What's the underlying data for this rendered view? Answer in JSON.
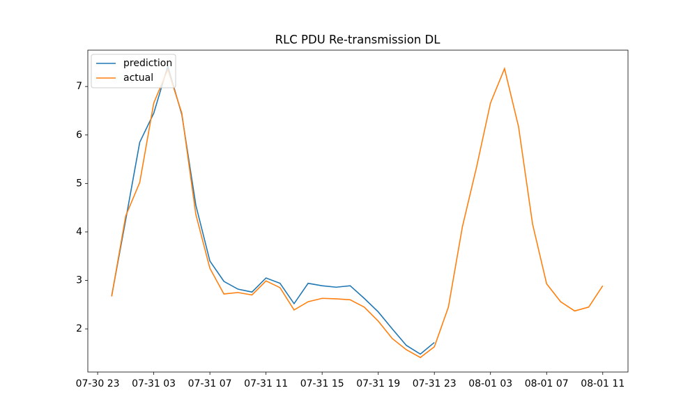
{
  "chart_data": {
    "type": "line",
    "title": "RLC PDU Re-transmission DL",
    "x": [
      "07-31 00",
      "07-31 01",
      "07-31 02",
      "07-31 03",
      "07-31 04",
      "07-31 05",
      "07-31 06",
      "07-31 07",
      "07-31 08",
      "07-31 09",
      "07-31 10",
      "07-31 11",
      "07-31 12",
      "07-31 13",
      "07-31 14",
      "07-31 15",
      "07-31 16",
      "07-31 17",
      "07-31 18",
      "07-31 19",
      "07-31 20",
      "07-31 21",
      "07-31 22",
      "07-31 23",
      "08-01 00",
      "08-01 01",
      "08-01 02",
      "08-01 03",
      "08-01 04",
      "08-01 05",
      "08-01 06",
      "08-01 07",
      "08-01 08",
      "08-01 09",
      "08-01 10",
      "08-01 11"
    ],
    "series": [
      {
        "name": "prediction",
        "color": "#1f77b4",
        "values": [
          2.68,
          4.25,
          5.85,
          6.45,
          7.42,
          6.42,
          4.55,
          3.4,
          2.98,
          2.82,
          2.76,
          3.05,
          2.94,
          2.52,
          2.94,
          2.89,
          2.86,
          2.89,
          2.63,
          2.35,
          2.0,
          1.66,
          1.48,
          1.72,
          null,
          null,
          null,
          null,
          null,
          null,
          null,
          null,
          null,
          null,
          null,
          null
        ]
      },
      {
        "name": "actual",
        "color": "#ff7f0e",
        "values": [
          2.67,
          4.33,
          5.02,
          6.66,
          7.35,
          6.45,
          4.36,
          3.25,
          2.72,
          2.75,
          2.7,
          2.99,
          2.85,
          2.39,
          2.56,
          2.63,
          2.62,
          2.6,
          2.45,
          2.16,
          1.8,
          1.57,
          1.41,
          1.63,
          2.45,
          4.11,
          5.33,
          6.66,
          7.37,
          6.17,
          4.16,
          2.93,
          2.56,
          2.37,
          2.45,
          2.89
        ]
      }
    ],
    "xlim": [
      "07-30 22:18",
      "08-01 12:48"
    ],
    "xticks": [
      "07-30 23",
      "07-31 03",
      "07-31 07",
      "07-31 11",
      "07-31 15",
      "07-31 19",
      "07-31 23",
      "08-01 03",
      "08-01 07",
      "08-01 11"
    ],
    "ylim": [
      1.11,
      7.75
    ],
    "yticks": [
      2,
      3,
      4,
      5,
      6,
      7
    ],
    "legend": "upper left"
  }
}
